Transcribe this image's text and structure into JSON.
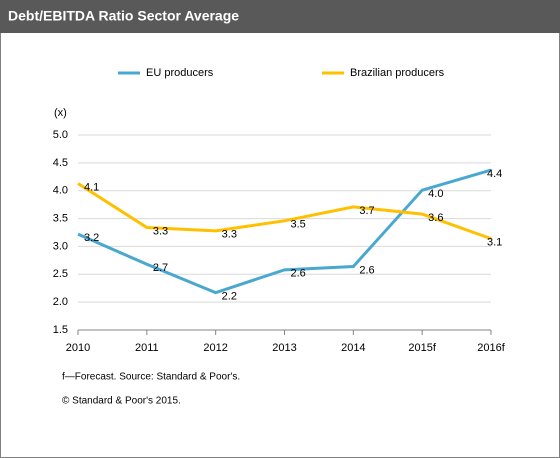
{
  "chart_data": {
    "type": "line",
    "title": "Debt/EBITDA  Ratio Sector Average",
    "y_unit_label": "(x)",
    "categories": [
      "2010",
      "2011",
      "2012",
      "2013",
      "2014",
      "2015f",
      "2016f"
    ],
    "series": [
      {
        "name": "EU producers",
        "color": "#4aa8d0",
        "values": [
          3.22,
          2.68,
          2.17,
          2.58,
          2.64,
          4.01,
          4.37
        ],
        "value_labels": [
          "3.2",
          "2.7",
          "2.2",
          "2.6",
          "2.6",
          "4.0",
          "4.4"
        ]
      },
      {
        "name": "Brazilian producers",
        "color": "#ffc000",
        "values": [
          4.13,
          3.34,
          3.28,
          3.46,
          3.71,
          3.58,
          3.14
        ],
        "value_labels": [
          "4.1",
          "3.3",
          "3.3",
          "3.5",
          "3.7",
          "3.6",
          "3.1"
        ]
      }
    ],
    "ylim": [
      1.5,
      5.0
    ],
    "yticks": [
      {
        "value": 1.5,
        "label": "1.5"
      },
      {
        "value": 2.0,
        "label": "2.0"
      },
      {
        "value": 2.5,
        "label": "2.5"
      },
      {
        "value": 3.0,
        "label": "3.0"
      },
      {
        "value": 3.5,
        "label": "3.5"
      },
      {
        "value": 4.0,
        "label": "4.0"
      },
      {
        "value": 4.5,
        "label": "4.5"
      },
      {
        "value": 5.0,
        "label": "5.0"
      }
    ],
    "grid": true,
    "legend": "top",
    "notes": [
      "f—Forecast. Source: Standard & Poor's.",
      "© Standard & Poor's 2015."
    ]
  }
}
